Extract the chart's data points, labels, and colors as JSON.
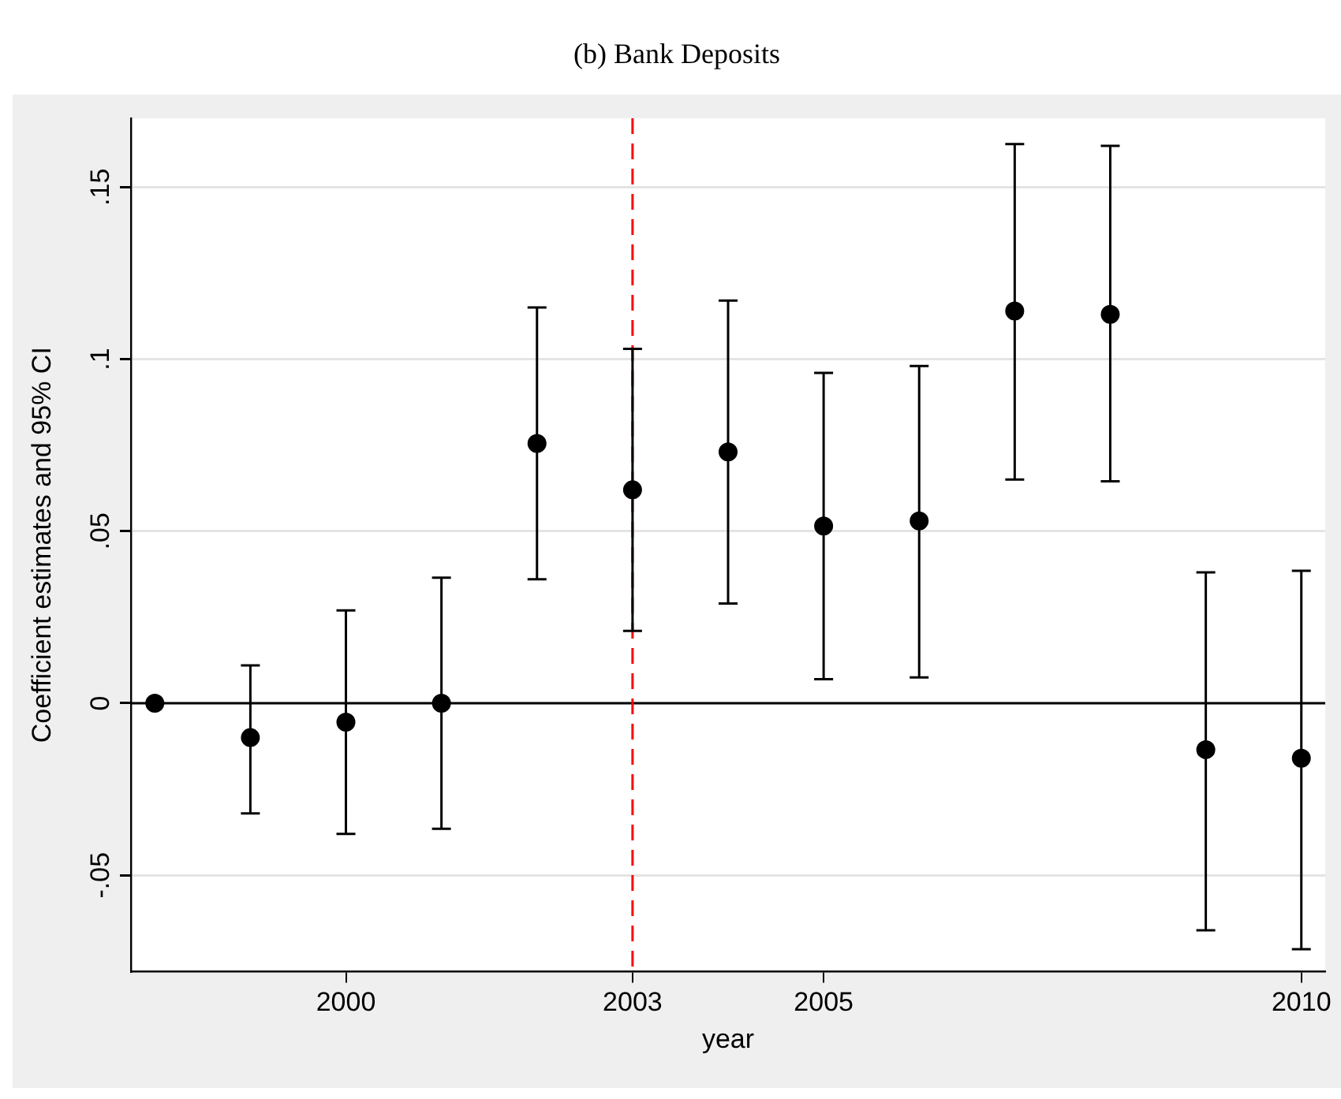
{
  "chart_data": {
    "type": "scatter",
    "title": "(b) Bank Deposits",
    "xlabel": "year",
    "ylabel": "Coefficient estimates and 95% CI",
    "x": [
      1998,
      1999,
      2000,
      2001,
      2002,
      2003,
      2004,
      2005,
      2006,
      2007,
      2008,
      2009,
      2010
    ],
    "series": [
      {
        "color": "#000000",
        "values": [
          0,
          -0.01,
          -0.0055,
          0,
          0.0755,
          0.062,
          0.073,
          0.0515,
          0.053,
          0.114,
          0.113,
          -0.0135,
          -0.016
        ],
        "errors": [
          null,
          [
            -0.032,
            0.011
          ],
          [
            -0.038,
            0.027
          ],
          [
            -0.0365,
            0.0365
          ],
          [
            0.036,
            0.115
          ],
          [
            0.021,
            0.103
          ],
          [
            0.029,
            0.117
          ],
          [
            0.007,
            0.096
          ],
          [
            0.0075,
            0.098
          ],
          [
            0.065,
            0.1625
          ],
          [
            0.0645,
            0.162
          ],
          [
            -0.066,
            0.038
          ],
          [
            -0.0715,
            0.0385
          ]
        ]
      }
    ],
    "xlim": [
      1997.75,
      2010.25
    ],
    "xticks": [
      2000,
      2003,
      2005,
      2010
    ],
    "ylim": [
      -0.078,
      0.17
    ],
    "yticks": [
      {
        "value": -0.05,
        "label": "-.05"
      },
      0,
      {
        "value": 0.05,
        "label": ".05"
      },
      {
        "value": 0.1,
        "label": ".1"
      },
      {
        "value": 0.15,
        "label": ".15"
      }
    ],
    "ref_lines": [
      {
        "axis": "y",
        "value": 0,
        "color": "#000000",
        "line_style": "solid"
      },
      {
        "axis": "x",
        "value": 2003,
        "color": "#ff0000",
        "line_style": "dashed"
      }
    ],
    "grid": "y",
    "legend": false,
    "marker": "circle"
  }
}
